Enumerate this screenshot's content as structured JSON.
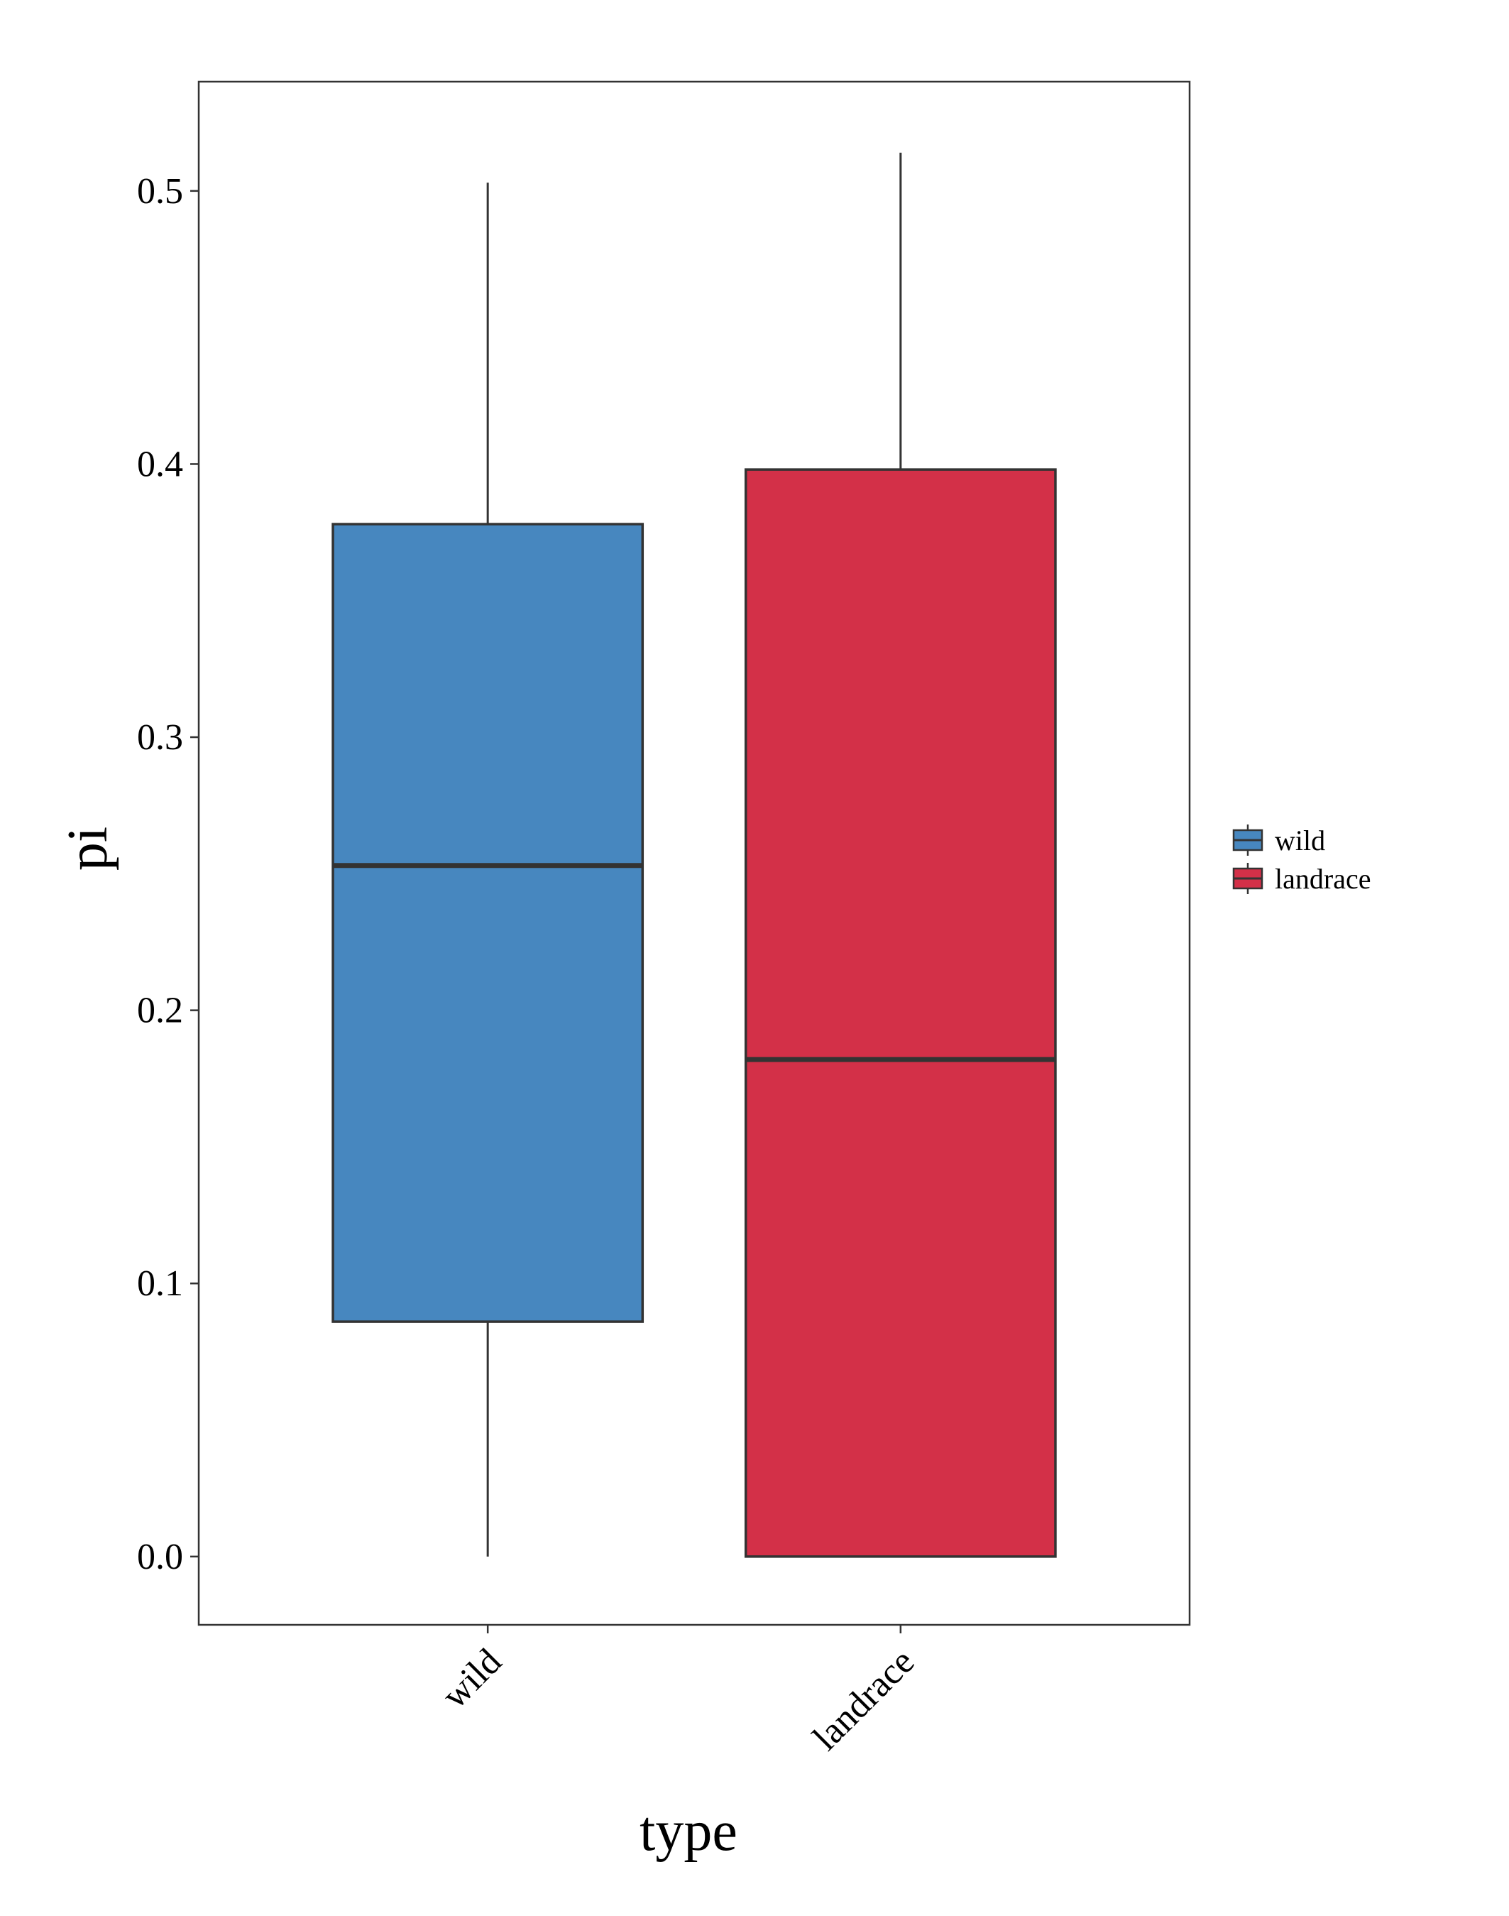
{
  "chart_data": {
    "type": "box",
    "xlabel": "type",
    "ylabel": "pi",
    "ylim": [
      -0.025,
      0.54
    ],
    "yticks": [
      "0.0",
      "0.1",
      "0.2",
      "0.3",
      "0.4",
      "0.5"
    ],
    "yticks_values": [
      0.0,
      0.1,
      0.2,
      0.3,
      0.4,
      0.5
    ],
    "categories": [
      "wild",
      "landrace"
    ],
    "series": [
      {
        "name": "wild",
        "color": "#4787BF",
        "min": 0.0,
        "q1": 0.086,
        "median": 0.253,
        "q3": 0.378,
        "max": 0.503
      },
      {
        "name": "landrace",
        "color": "#D33048",
        "min": 0.0,
        "q1": 0.0,
        "median": 0.182,
        "q3": 0.398,
        "max": 0.514
      }
    ],
    "grid": false,
    "legend": {
      "placement": "right",
      "entries": [
        "wild",
        "landrace"
      ]
    }
  }
}
